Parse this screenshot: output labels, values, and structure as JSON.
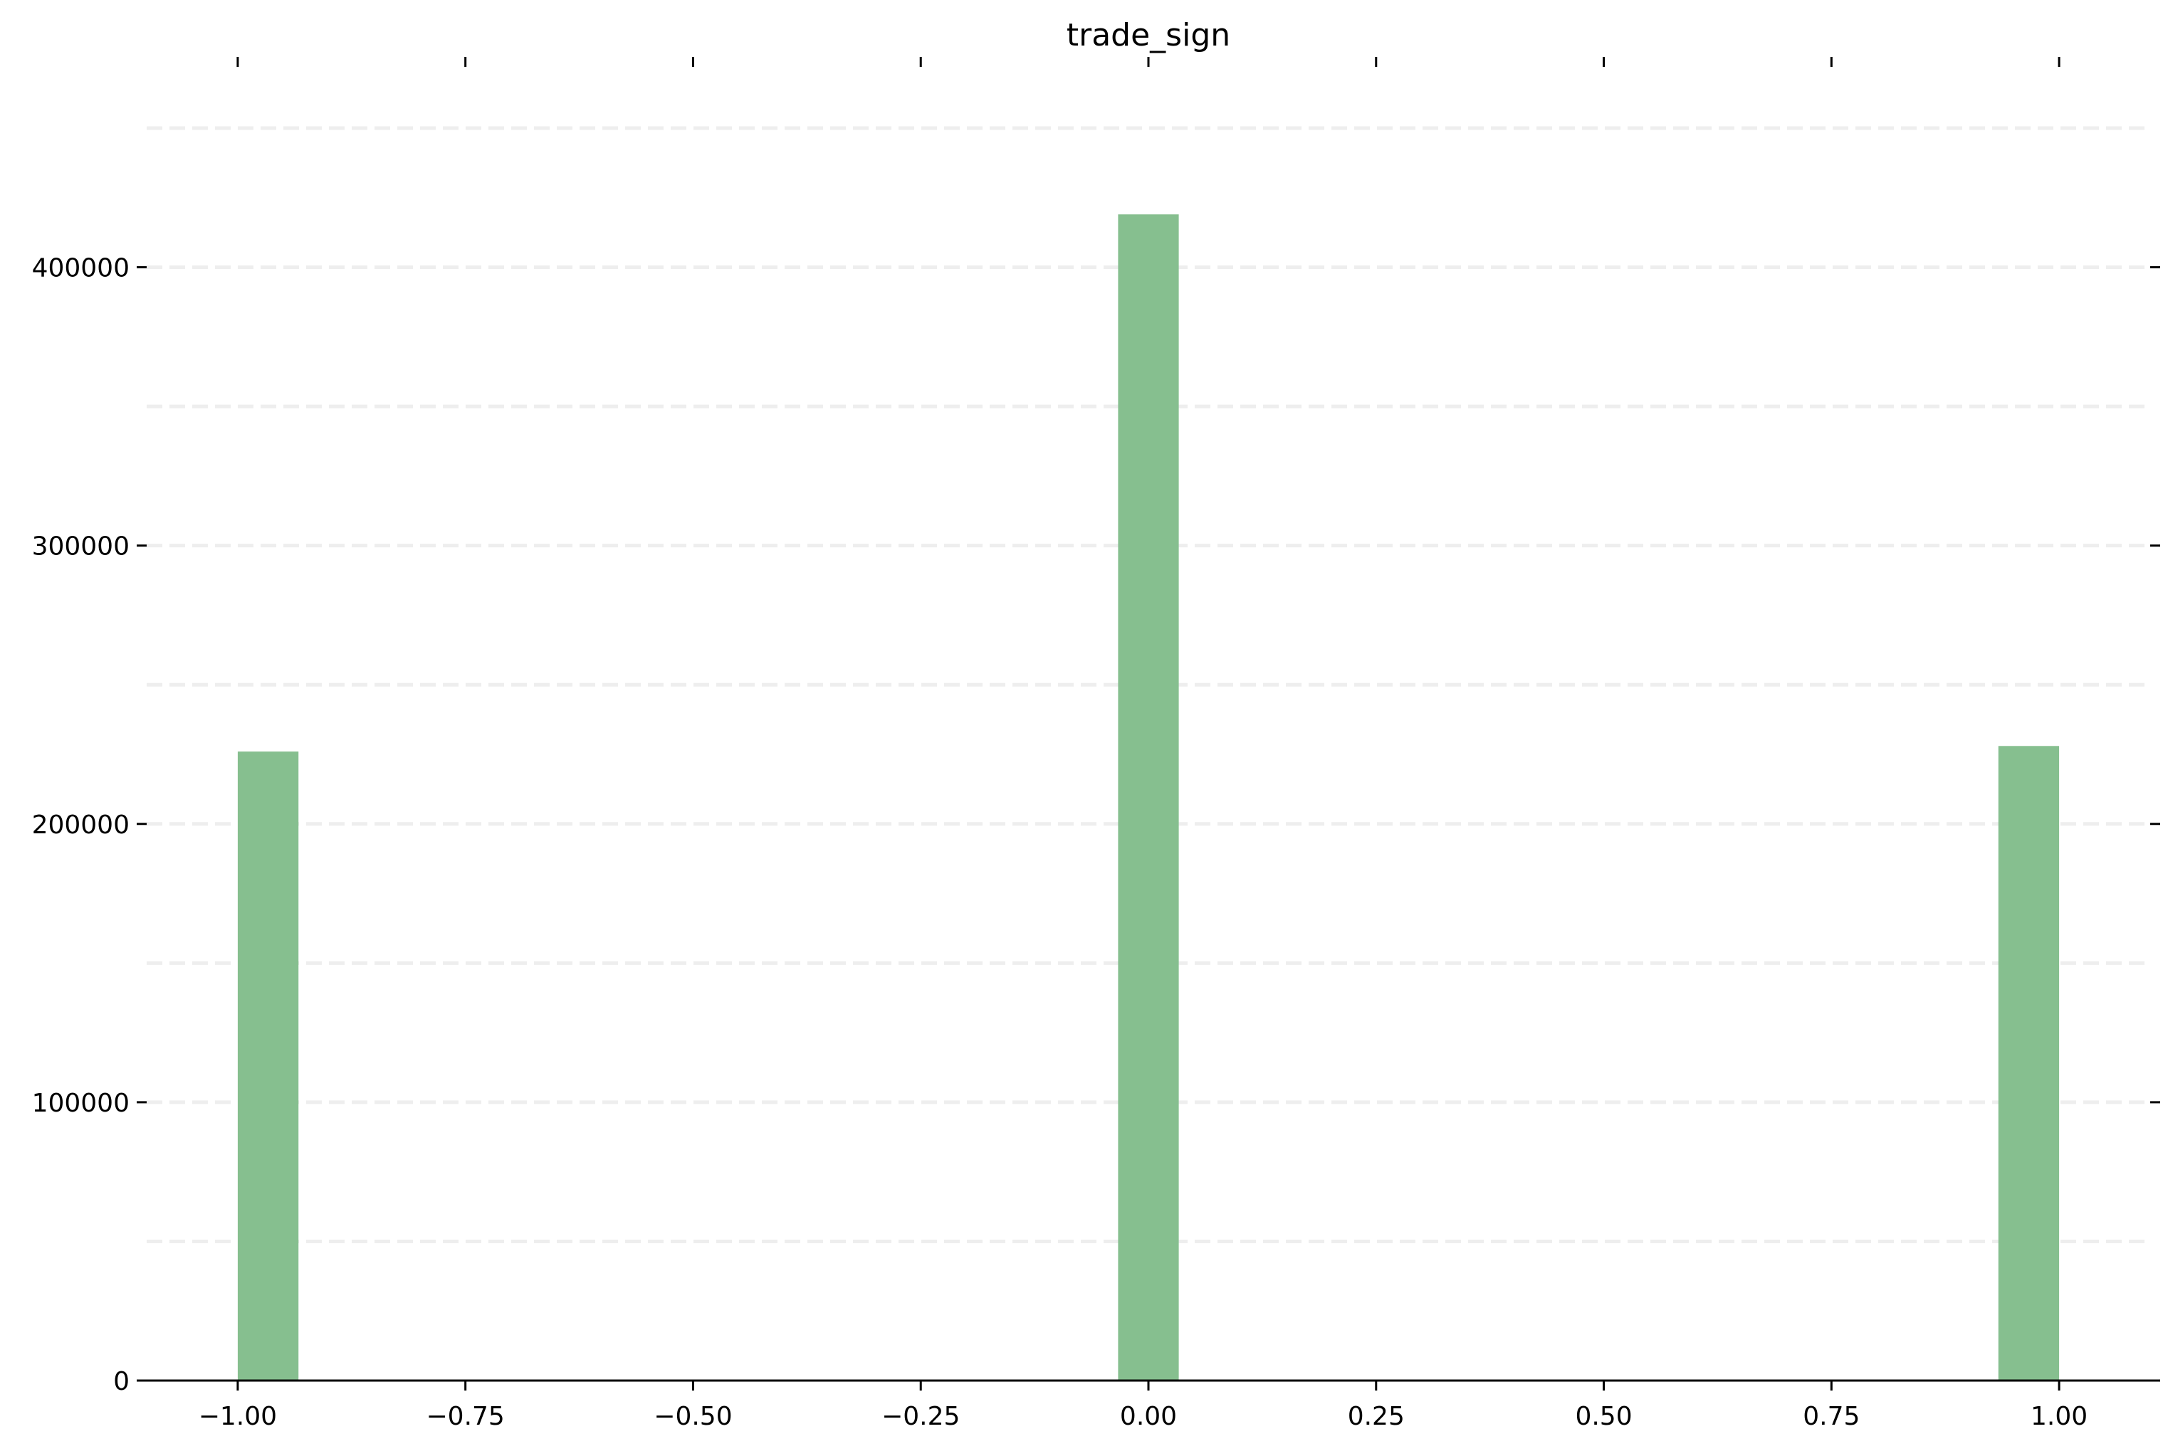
{
  "chart_data": {
    "type": "bar",
    "title": "trade_sign",
    "xlabel": "",
    "ylabel": "",
    "xlim": [
      -1.1,
      1.1
    ],
    "ylim": [
      0,
      450000
    ],
    "x_ticks": [
      "−1.00",
      "−0.75",
      "−0.50",
      "−0.25",
      "0.00",
      "0.25",
      "0.50",
      "0.75",
      "1.00"
    ],
    "x_tick_values": [
      -1.0,
      -0.75,
      -0.5,
      -0.25,
      0.0,
      0.25,
      0.5,
      0.75,
      1.0
    ],
    "y_ticks": [
      "0",
      "100000",
      "200000",
      "300000",
      "400000"
    ],
    "y_tick_values": [
      0,
      100000,
      200000,
      300000,
      400000
    ],
    "y_grid_values": [
      50000,
      100000,
      150000,
      200000,
      250000,
      300000,
      350000,
      400000,
      450000
    ],
    "bins": [
      {
        "x0": -1.0,
        "x1": -0.9333,
        "value": 226000
      },
      {
        "x0": -0.0333,
        "x1": 0.0333,
        "value": 419000
      },
      {
        "x0": 0.9333,
        "x1": 1.0,
        "value": 228000
      }
    ],
    "grid": true,
    "grid_style": "dashed horizontal",
    "colors": {
      "bar": "#86bf8f",
      "grid": "#eeeeee",
      "axis": "#000000",
      "text": "#000000"
    }
  }
}
